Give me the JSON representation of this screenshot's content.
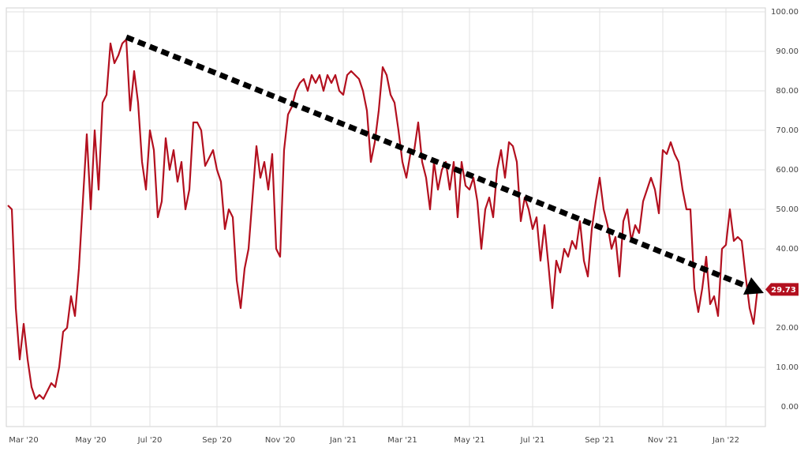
{
  "chart_data": {
    "type": "line",
    "categories": [
      null,
      null,
      null,
      null,
      "Mar '20",
      null,
      null,
      null,
      null,
      null,
      null,
      null,
      null,
      null,
      null,
      null,
      null,
      null,
      null,
      null,
      null,
      "May '20",
      null,
      null,
      null,
      null,
      null,
      null,
      null,
      null,
      null,
      null,
      null,
      null,
      null,
      null,
      "Jul '20",
      null,
      null,
      null,
      null,
      null,
      null,
      null,
      null,
      null,
      null,
      null,
      null,
      null,
      null,
      null,
      null,
      "Sep '20",
      null,
      null,
      null,
      null,
      null,
      null,
      null,
      null,
      null,
      null,
      null,
      null,
      null,
      null,
      null,
      "Nov '20",
      null,
      null,
      null,
      null,
      null,
      null,
      null,
      null,
      null,
      null,
      null,
      null,
      null,
      null,
      null,
      "Jan '21",
      null,
      null,
      null,
      null,
      null,
      null,
      null,
      null,
      null,
      null,
      null,
      null,
      null,
      null,
      "Mar '21",
      null,
      null,
      null,
      null,
      null,
      null,
      null,
      null,
      null,
      null,
      null,
      null,
      null,
      null,
      null,
      null,
      "May '21",
      null,
      null,
      null,
      null,
      null,
      null,
      null,
      null,
      null,
      null,
      null,
      null,
      null,
      null,
      null,
      "Jul '21",
      null,
      null,
      null,
      null,
      null,
      null,
      null,
      null,
      null,
      null,
      null,
      null,
      null,
      null,
      null,
      null,
      "Sep '21",
      null,
      null,
      null,
      null,
      null,
      null,
      null,
      null,
      null,
      null,
      null,
      null,
      null,
      null,
      null,
      "Nov '21",
      null,
      null,
      null,
      null,
      null,
      null,
      null,
      null,
      null,
      null,
      null,
      null,
      null,
      null,
      null,
      "Jan '22",
      null,
      null,
      null,
      null,
      null,
      null,
      null,
      null
    ],
    "values": [
      51,
      50,
      25,
      12,
      21,
      12,
      5,
      2,
      3,
      2,
      4,
      6,
      5,
      10,
      19,
      20,
      28,
      23,
      35,
      52,
      69,
      50,
      70,
      55,
      77,
      79,
      92,
      87,
      89,
      92,
      93,
      75,
      85,
      77,
      62,
      55,
      70,
      65,
      48,
      52,
      68,
      60,
      65,
      57,
      62,
      50,
      55,
      72,
      72,
      70,
      61,
      63,
      65,
      60,
      57,
      45,
      50,
      48,
      32,
      25,
      35,
      40,
      53,
      66,
      58,
      62,
      55,
      64,
      40,
      38,
      65,
      74,
      76,
      80,
      82,
      83,
      80,
      84,
      82,
      84,
      80,
      84,
      82,
      84,
      80,
      79,
      84,
      85,
      84,
      83,
      80,
      75,
      62,
      67,
      75,
      86,
      84,
      79,
      77,
      70,
      62,
      58,
      64,
      65,
      72,
      62,
      58,
      50,
      62,
      55,
      60,
      62,
      55,
      62,
      48,
      62,
      56,
      55,
      58,
      52,
      40,
      50,
      53,
      48,
      60,
      65,
      58,
      67,
      66,
      62,
      47,
      53,
      50,
      45,
      48,
      37,
      46,
      36,
      25,
      37,
      34,
      40,
      38,
      42,
      40,
      47,
      37,
      33,
      45,
      52,
      58,
      50,
      46,
      40,
      43,
      33,
      47,
      50,
      42,
      46,
      44,
      52,
      55,
      58,
      55,
      49,
      65,
      64,
      67,
      64,
      62,
      55,
      50,
      50,
      30,
      24,
      30,
      38,
      26,
      28,
      23,
      40,
      41,
      50,
      42,
      43,
      42,
      33,
      25,
      21,
      29.73
    ],
    "color": "#b3101f",
    "ylim": [
      -5,
      101
    ],
    "yticks": [
      {
        "value": 0,
        "label": "0.00"
      },
      {
        "value": 10,
        "label": "10.00"
      },
      {
        "value": 20,
        "label": "20.00"
      },
      {
        "value": 30,
        "label": "30.00"
      },
      {
        "value": 40,
        "label": "40.00"
      },
      {
        "value": 50,
        "label": "50.00"
      },
      {
        "value": 60,
        "label": "60.00"
      },
      {
        "value": 70,
        "label": "70.00"
      },
      {
        "value": 80,
        "label": "80.00"
      },
      {
        "value": 90,
        "label": "90.00"
      },
      {
        "value": 100,
        "label": "100.00"
      }
    ],
    "grid": true,
    "y_axis_side": "right"
  }
}
